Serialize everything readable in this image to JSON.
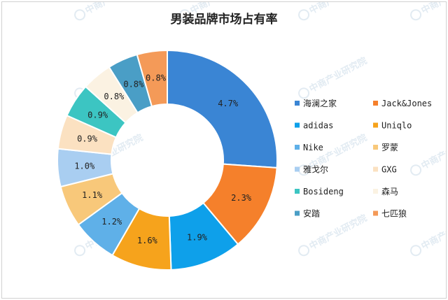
{
  "chart_data": {
    "type": "pie",
    "subtype": "donut",
    "title": "男装品牌市场占有率",
    "legend_position": "right",
    "start_angle": "top",
    "direction": "clockwise",
    "categories": [
      "海澜之家",
      "Jack&Jones",
      "adidas",
      "Uniqlo",
      "Nike",
      "罗蒙",
      "雅戈尔",
      "GXG",
      "Bosideng",
      "森马",
      "安踏",
      "七匹狼"
    ],
    "values": [
      4.7,
      2.3,
      1.9,
      1.6,
      1.2,
      1.1,
      1.0,
      0.9,
      0.9,
      0.8,
      0.8,
      0.8
    ],
    "value_labels": [
      "4.7%",
      "2.3%",
      "1.9%",
      "1.6%",
      "1.2%",
      "1.1%",
      "1.0%",
      "0.9%",
      "0.9%",
      "0.8%",
      "0.8%",
      "0.8%"
    ],
    "colors": [
      "#3a85d4",
      "#f5802b",
      "#0ea0ea",
      "#f6a31c",
      "#5fb0e8",
      "#f8c87a",
      "#a9cef1",
      "#fbe1c1",
      "#3cc5c2",
      "#fbf2e2",
      "#4a9ec6",
      "#f49a58"
    ],
    "legend_layout": {
      "columns": 2
    }
  },
  "watermark": "中商产业研究院"
}
